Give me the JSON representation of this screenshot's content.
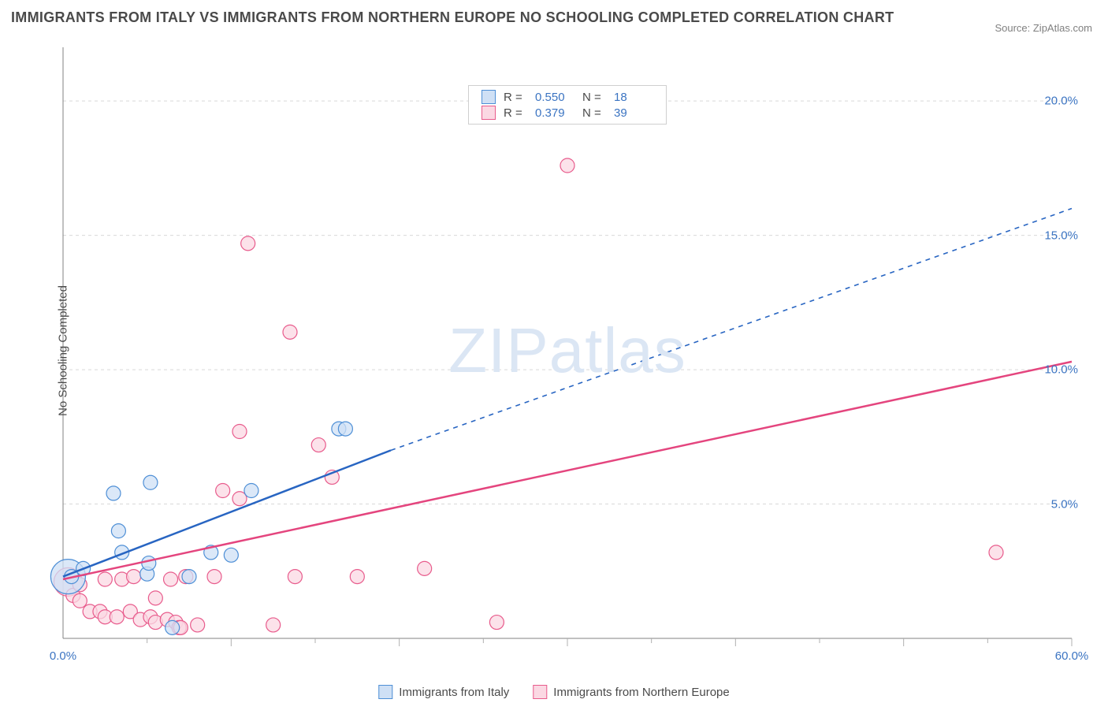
{
  "title": "IMMIGRANTS FROM ITALY VS IMMIGRANTS FROM NORTHERN EUROPE NO SCHOOLING COMPLETED CORRELATION CHART",
  "source": "Source: ZipAtlas.com",
  "watermark": {
    "zip": "ZIP",
    "atlas": "atlas"
  },
  "ylabel": "No Schooling Completed",
  "chart": {
    "type": "scatter",
    "background_color": "#ffffff",
    "grid_color": "#d9d9d9",
    "axis_color": "#808080",
    "tick_color": "#b0b0b0",
    "xlim": [
      0,
      60
    ],
    "ylim": [
      0,
      22
    ],
    "x_ticks_major": [
      0,
      10,
      20,
      30,
      40,
      50,
      60
    ],
    "x_ticks_minor": [
      5,
      15,
      25,
      35,
      45,
      55
    ],
    "y_gridlines": [
      5,
      10,
      15,
      20
    ],
    "x_labels": [
      {
        "value": 0,
        "label": "0.0%"
      },
      {
        "value": 60,
        "label": "60.0%"
      }
    ],
    "y_labels": [
      {
        "value": 5,
        "label": "5.0%"
      },
      {
        "value": 10,
        "label": "10.0%"
      },
      {
        "value": 15,
        "label": "15.0%"
      },
      {
        "value": 20,
        "label": "20.0%"
      }
    ],
    "series": [
      {
        "name": "Immigrants from Italy",
        "fill": "#cfe0f5",
        "stroke": "#4e8fd6",
        "line_color": "#2865c2",
        "marker_radius": 9,
        "marker_opacity": 0.75,
        "trend": {
          "solid": {
            "x1": 0,
            "y1": 2.3,
            "x2": 19.5,
            "y2": 7.0
          },
          "dashed": {
            "x1": 19.5,
            "y1": 7.0,
            "x2": 60,
            "y2": 16.0
          },
          "dash_pattern": "6,6"
        },
        "points": [
          {
            "x": 0.3,
            "y": 2.3,
            "r": 22
          },
          {
            "x": 0.5,
            "y": 2.3
          },
          {
            "x": 1.2,
            "y": 2.6
          },
          {
            "x": 3.0,
            "y": 5.4
          },
          {
            "x": 3.3,
            "y": 4.0
          },
          {
            "x": 3.5,
            "y": 3.2
          },
          {
            "x": 5.0,
            "y": 2.4
          },
          {
            "x": 5.2,
            "y": 5.8
          },
          {
            "x": 5.1,
            "y": 2.8
          },
          {
            "x": 6.5,
            "y": 0.4
          },
          {
            "x": 7.5,
            "y": 2.3
          },
          {
            "x": 8.8,
            "y": 3.2
          },
          {
            "x": 10.0,
            "y": 3.1
          },
          {
            "x": 11.2,
            "y": 5.5
          },
          {
            "x": 16.4,
            "y": 7.8
          },
          {
            "x": 16.8,
            "y": 7.8
          }
        ]
      },
      {
        "name": "Immigrants from Northern Europe",
        "fill": "#fbd8e3",
        "stroke": "#e85b8c",
        "line_color": "#e4457e",
        "marker_radius": 9,
        "marker_opacity": 0.75,
        "trend": {
          "solid": {
            "x1": 0,
            "y1": 2.2,
            "x2": 60,
            "y2": 10.3
          }
        },
        "points": [
          {
            "x": 0.3,
            "y": 2.1,
            "r": 18
          },
          {
            "x": 0.6,
            "y": 1.6
          },
          {
            "x": 1.0,
            "y": 1.4
          },
          {
            "x": 1.0,
            "y": 2.0
          },
          {
            "x": 1.6,
            "y": 1.0
          },
          {
            "x": 2.2,
            "y": 1.0
          },
          {
            "x": 2.5,
            "y": 0.8
          },
          {
            "x": 2.5,
            "y": 2.2
          },
          {
            "x": 3.2,
            "y": 0.8
          },
          {
            "x": 3.5,
            "y": 2.2
          },
          {
            "x": 4.0,
            "y": 1.0
          },
          {
            "x": 4.2,
            "y": 2.3
          },
          {
            "x": 4.6,
            "y": 0.7
          },
          {
            "x": 5.2,
            "y": 0.8
          },
          {
            "x": 5.5,
            "y": 1.5
          },
          {
            "x": 5.5,
            "y": 0.6
          },
          {
            "x": 6.2,
            "y": 0.7
          },
          {
            "x": 6.4,
            "y": 2.2
          },
          {
            "x": 6.7,
            "y": 0.6
          },
          {
            "x": 6.9,
            "y": 0.4
          },
          {
            "x": 7.0,
            "y": 0.4
          },
          {
            "x": 7.3,
            "y": 2.3
          },
          {
            "x": 8.0,
            "y": 0.5
          },
          {
            "x": 9.0,
            "y": 2.3
          },
          {
            "x": 9.5,
            "y": 5.5
          },
          {
            "x": 10.5,
            "y": 7.7
          },
          {
            "x": 10.5,
            "y": 5.2
          },
          {
            "x": 11.0,
            "y": 14.7
          },
          {
            "x": 12.5,
            "y": 0.5
          },
          {
            "x": 13.5,
            "y": 11.4
          },
          {
            "x": 13.8,
            "y": 2.3
          },
          {
            "x": 15.2,
            "y": 7.2
          },
          {
            "x": 16.0,
            "y": 6.0
          },
          {
            "x": 17.5,
            "y": 2.3
          },
          {
            "x": 21.5,
            "y": 2.6
          },
          {
            "x": 25.8,
            "y": 0.6
          },
          {
            "x": 30.0,
            "y": 17.6
          },
          {
            "x": 55.5,
            "y": 3.2
          }
        ]
      }
    ]
  },
  "legend_top": {
    "rows": [
      {
        "sw_fill": "#cfe0f5",
        "sw_stroke": "#4e8fd6",
        "r_label": "R =",
        "r_value": "0.550",
        "n_label": "N =",
        "n_value": "18"
      },
      {
        "sw_fill": "#fbd8e3",
        "sw_stroke": "#e85b8c",
        "r_label": "R =",
        "r_value": "0.379",
        "n_label": "N =",
        "n_value": "39"
      }
    ]
  },
  "legend_bottom": {
    "items": [
      {
        "sw_fill": "#cfe0f5",
        "sw_stroke": "#4e8fd6",
        "label": "Immigrants from Italy"
      },
      {
        "sw_fill": "#fbd8e3",
        "sw_stroke": "#e85b8c",
        "label": "Immigrants from Northern Europe"
      }
    ]
  }
}
